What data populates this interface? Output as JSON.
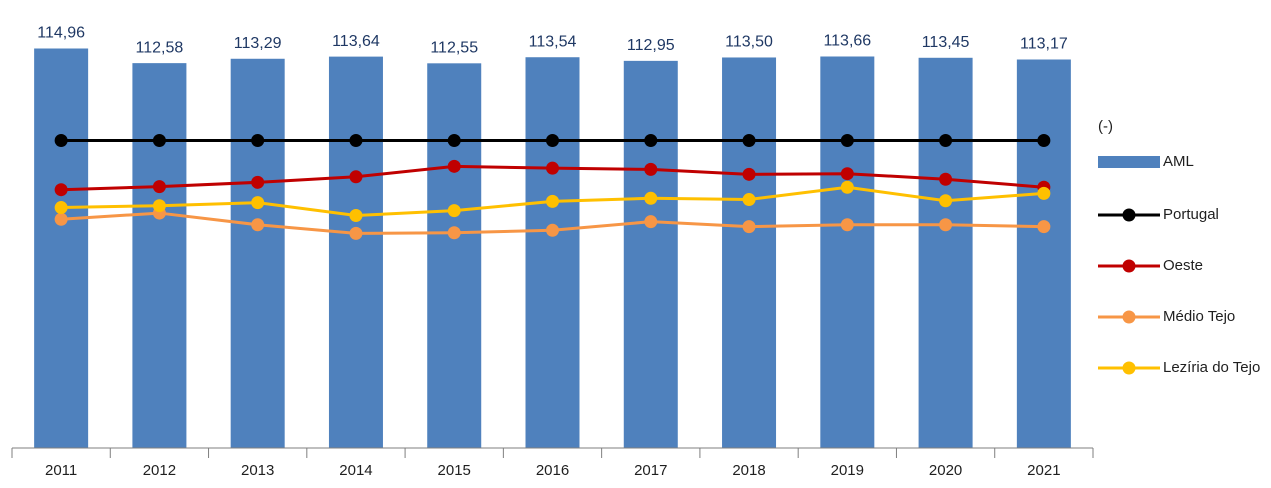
{
  "chart_data": {
    "type": "bar",
    "categories": [
      "2011",
      "2012",
      "2013",
      "2014",
      "2015",
      "2016",
      "2017",
      "2018",
      "2019",
      "2020",
      "2021"
    ],
    "unit_label": "(-)",
    "ylim": [
      50,
      120
    ],
    "series": [
      {
        "name": "AML",
        "type": "bar",
        "color": "#4f81bd",
        "values": [
          114.96,
          112.58,
          113.29,
          113.64,
          112.55,
          113.54,
          112.95,
          113.5,
          113.66,
          113.45,
          113.17
        ],
        "value_labels": [
          "114,96",
          "112,58",
          "113,29",
          "113,64",
          "112,55",
          "113,54",
          "112,95",
          "113,50",
          "113,66",
          "113,45",
          "113,17"
        ]
      },
      {
        "name": "Portugal",
        "type": "line",
        "color": "#000000",
        "values": [
          100,
          100,
          100,
          100,
          100,
          100,
          100,
          100,
          100,
          100,
          100
        ]
      },
      {
        "name": "Oeste",
        "type": "line",
        "color": "#c00000",
        "values": [
          92.0,
          92.5,
          93.2,
          94.1,
          95.8,
          95.5,
          95.3,
          94.5,
          94.6,
          93.7,
          92.4
        ]
      },
      {
        "name": "Médio Tejo",
        "type": "line",
        "color": "#f79646",
        "values": [
          87.2,
          88.2,
          86.3,
          84.9,
          85.0,
          85.4,
          86.8,
          86.0,
          86.3,
          86.3,
          86.0
        ]
      },
      {
        "name": "Lezíria do Tejo",
        "type": "line",
        "color": "#ffc000",
        "values": [
          89.1,
          89.4,
          89.9,
          87.8,
          88.6,
          90.1,
          90.6,
          90.4,
          92.4,
          90.2,
          91.4
        ]
      }
    ]
  }
}
